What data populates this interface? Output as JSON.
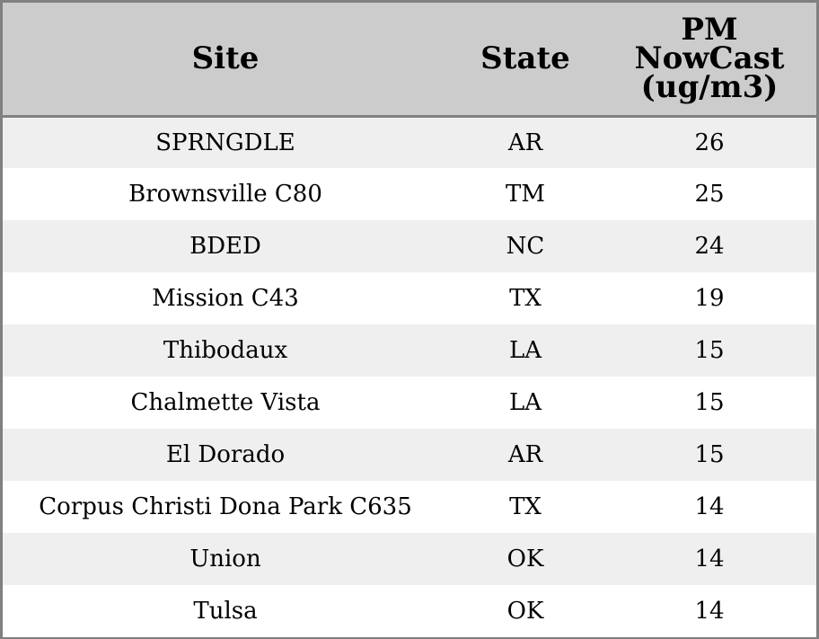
{
  "colors": {
    "header_bg": "#cccccc",
    "stripe_bg": "#efefef",
    "row_bg": "#ffffff",
    "border": "#808080"
  },
  "chart_data": {
    "type": "table",
    "columns": [
      "Site",
      "State",
      "PM NowCast (ug/m3)"
    ],
    "column_lines": [
      [
        "Site"
      ],
      [
        "State"
      ],
      [
        "PM",
        "NowCast",
        "(ug/m3)"
      ]
    ],
    "rows": [
      [
        "SPRNGDLE",
        "AR",
        "26"
      ],
      [
        "Brownsville C80",
        "TM",
        "25"
      ],
      [
        "BDED",
        "NC",
        "24"
      ],
      [
        "Mission C43",
        "TX",
        "19"
      ],
      [
        "Thibodaux",
        "LA",
        "15"
      ],
      [
        "Chalmette Vista",
        "LA",
        "15"
      ],
      [
        "El Dorado",
        "AR",
        "15"
      ],
      [
        "Corpus Christi Dona Park C635",
        "TX",
        "14"
      ],
      [
        "Union",
        "OK",
        "14"
      ],
      [
        "Tulsa",
        "OK",
        "14"
      ]
    ]
  }
}
